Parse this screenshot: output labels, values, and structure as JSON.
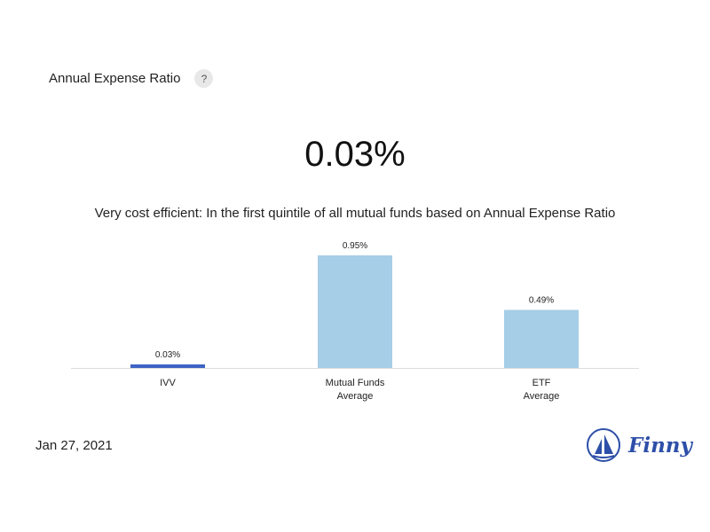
{
  "header": {
    "title": "Annual Expense Ratio",
    "help_label": "?"
  },
  "headline_value": "0.03%",
  "description": "Very cost efficient: In the first quintile of all mutual funds based on Annual Expense Ratio",
  "chart_data": {
    "type": "bar",
    "categories": [
      [
        "IVV"
      ],
      [
        "Mutual Funds",
        "Average"
      ],
      [
        "ETF",
        "Average"
      ]
    ],
    "values": [
      0.03,
      0.95,
      0.49
    ],
    "value_labels": [
      "0.03%",
      "0.95%",
      "0.49%"
    ],
    "colors": [
      "#3f63c4",
      "#a6cee6",
      "#a6cee6"
    ],
    "axis_color": "#dddddd",
    "ylim": [
      0,
      0.95
    ]
  },
  "date": "Jan 27, 2021",
  "logo": {
    "text": "Finny",
    "color": "#2d4fa8",
    "icon": "sailboat-icon"
  }
}
